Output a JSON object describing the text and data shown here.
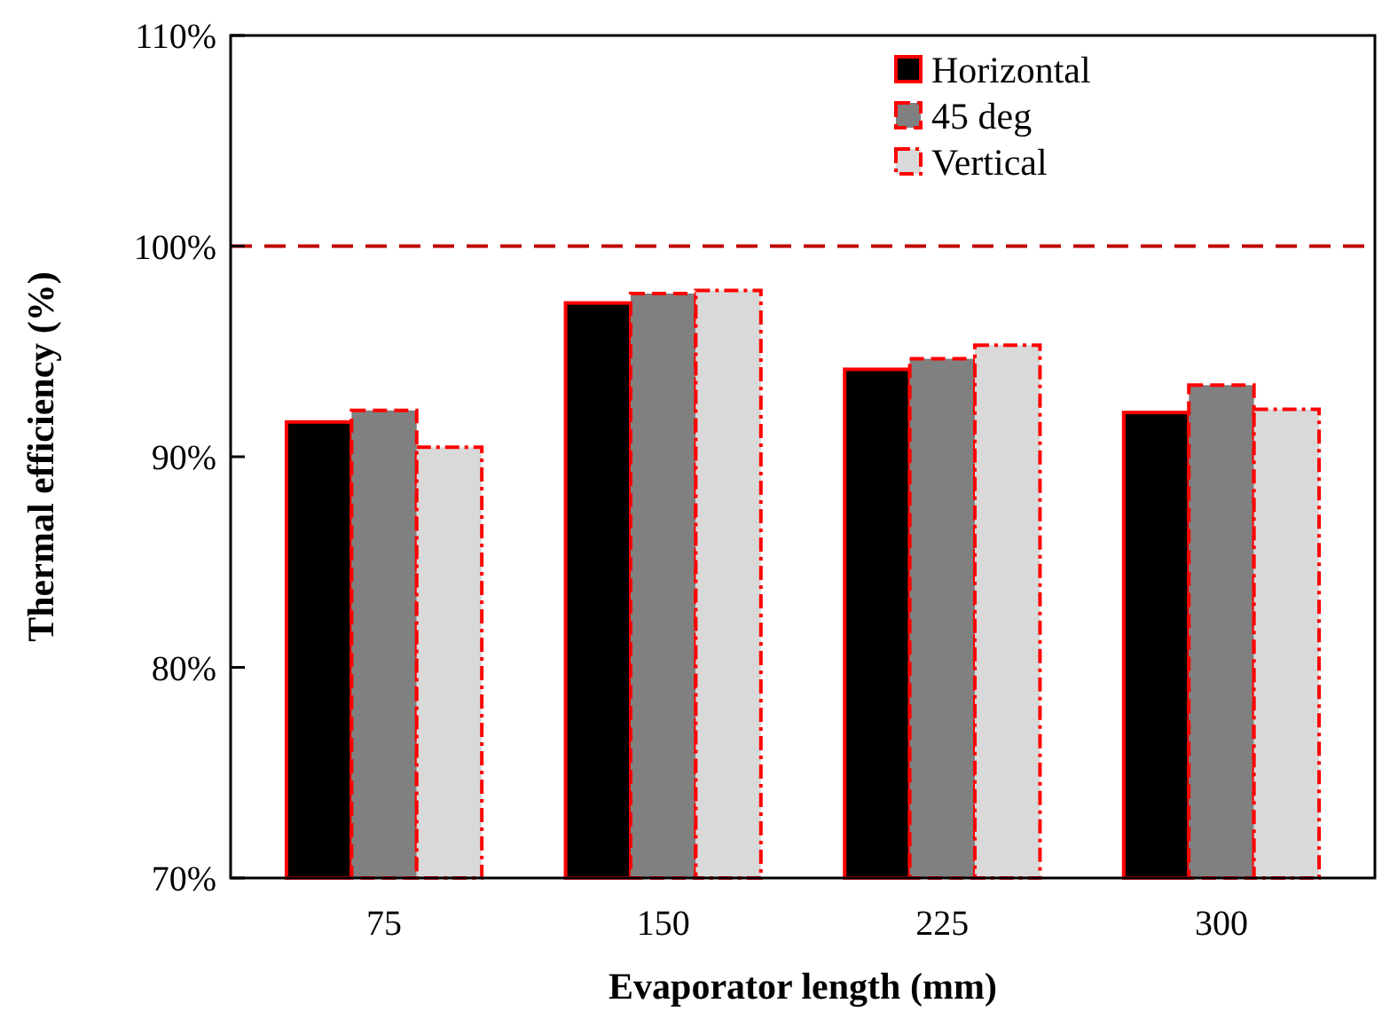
{
  "chart_data": {
    "type": "bar",
    "xlabel": "Evaporator length (mm)",
    "ylabel": "Thermal efficiency (%)",
    "categories": [
      "75",
      "150",
      "225",
      "300"
    ],
    "series": [
      {
        "name": "Horizontal",
        "color": "#000000",
        "line_style": "solid",
        "values": [
          91.65,
          97.3,
          94.15,
          92.1
        ]
      },
      {
        "name": "45 deg",
        "color": "#808080",
        "line_style": "dashed",
        "values": [
          92.2,
          97.75,
          94.65,
          93.4
        ]
      },
      {
        "name": "Vertical",
        "color": "#d9d9d9",
        "line_style": "dotted",
        "values": [
          90.45,
          97.9,
          95.3,
          92.25
        ]
      }
    ],
    "ylim": [
      70,
      110
    ],
    "yticks": [
      {
        "value": 70,
        "label": "70%"
      },
      {
        "value": 80,
        "label": "80%"
      },
      {
        "value": 90,
        "label": "90%"
      },
      {
        "value": 100,
        "label": "100%"
      },
      {
        "value": 110,
        "label": "110%"
      }
    ],
    "ref_lines": [
      {
        "axis": "y",
        "value": 100,
        "color": "#c00000",
        "line_style": "dashed"
      }
    ],
    "legend": "top right",
    "grid": false
  }
}
